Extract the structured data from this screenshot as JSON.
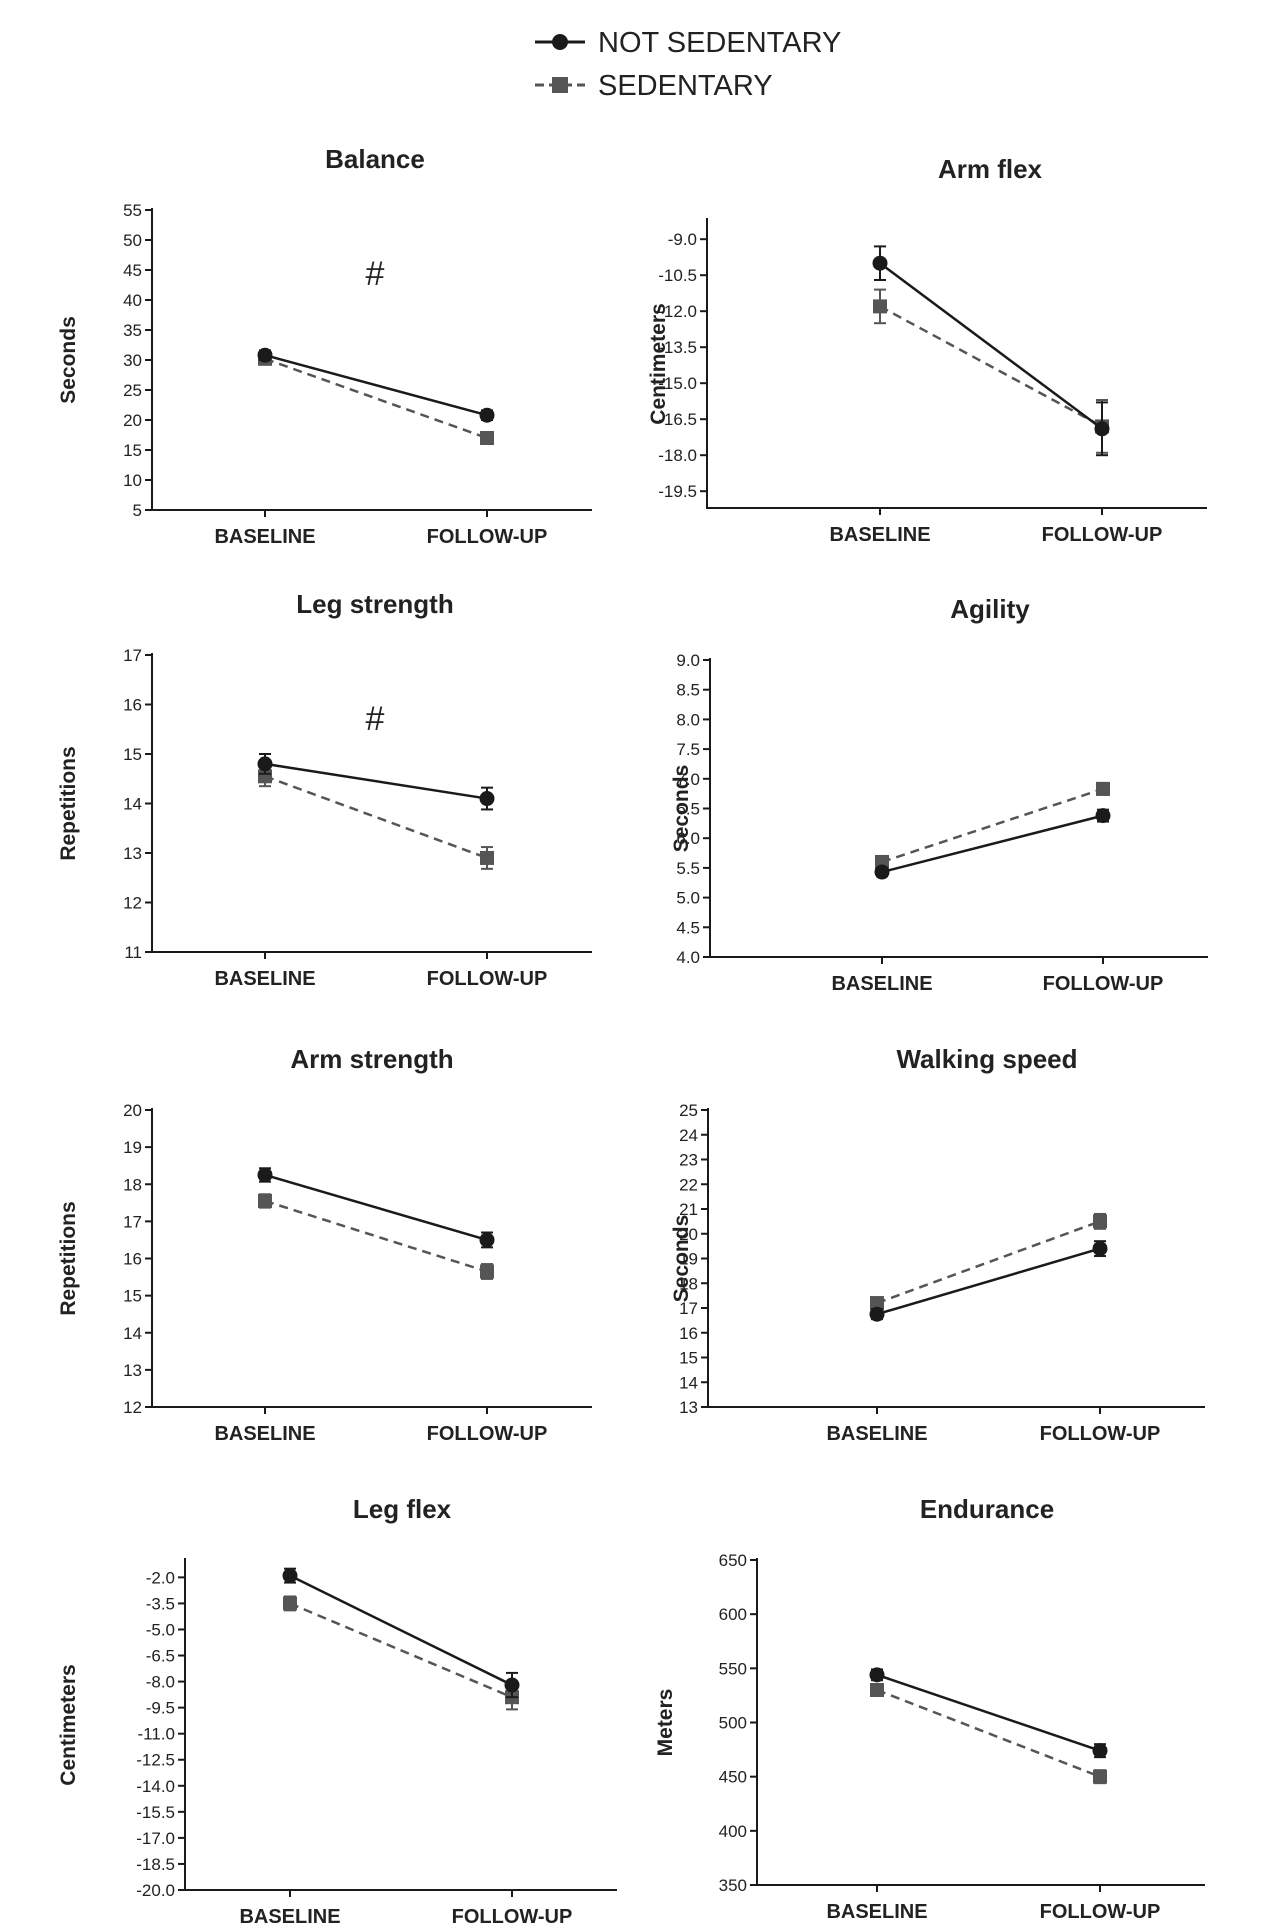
{
  "legend": {
    "entries": [
      {
        "name": "NOT SEDENTARY",
        "marker": "circle",
        "line": "solid"
      },
      {
        "name": "SEDENTARY",
        "marker": "square",
        "line": "dashed"
      }
    ]
  },
  "colors": {
    "ink": "#1a1a1a",
    "sedentary_marker": "#555555"
  },
  "chart_data": [
    {
      "type": "line",
      "title": "Balance",
      "xlabel": "",
      "ylabel": "Seconds",
      "categories": [
        "BASELINE",
        "FOLLOW-UP"
      ],
      "ylim": [
        5,
        55
      ],
      "yticks": [
        "5",
        "10",
        "15",
        "20",
        "25",
        "30",
        "35",
        "40",
        "45",
        "50",
        "55"
      ],
      "series": [
        {
          "name": "NOT SEDENTARY",
          "values": [
            30.8,
            20.8
          ],
          "err": [
            0.8,
            0.8
          ]
        },
        {
          "name": "SEDENTARY",
          "values": [
            30.2,
            17.0
          ],
          "err": [
            0.8,
            0.8
          ]
        }
      ],
      "annotation": "#"
    },
    {
      "type": "line",
      "title": "Arm flex",
      "xlabel": "",
      "ylabel": "Centimeters",
      "categories": [
        "BASELINE",
        "FOLLOW-UP"
      ],
      "ylim": [
        -20.2,
        -8.2
      ],
      "yticks": [
        "-9.0",
        "-10.5",
        "-12.0",
        "-13.5",
        "-15.0",
        "-16.5",
        "-18.0",
        "-19.5"
      ],
      "series": [
        {
          "name": "NOT SEDENTARY",
          "values": [
            -10.0,
            -16.9
          ],
          "err": [
            0.7,
            1.1
          ]
        },
        {
          "name": "SEDENTARY",
          "values": [
            -11.8,
            -16.8
          ],
          "err": [
            0.7,
            1.1
          ]
        }
      ]
    },
    {
      "type": "line",
      "title": "Leg strength",
      "xlabel": "",
      "ylabel": "Repetitions",
      "categories": [
        "BASELINE",
        "FOLLOW-UP"
      ],
      "ylim": [
        11,
        17
      ],
      "yticks": [
        "11",
        "12",
        "13",
        "14",
        "15",
        "16",
        "17"
      ],
      "series": [
        {
          "name": "NOT SEDENTARY",
          "values": [
            14.8,
            14.1
          ],
          "err": [
            0.2,
            0.22
          ]
        },
        {
          "name": "SEDENTARY",
          "values": [
            14.55,
            12.9
          ],
          "err": [
            0.2,
            0.22
          ]
        }
      ],
      "annotation": "#"
    },
    {
      "type": "line",
      "title": "Agility",
      "xlabel": "",
      "ylabel": "Seconds",
      "categories": [
        "BASELINE",
        "FOLLOW-UP"
      ],
      "ylim": [
        4.0,
        9.0
      ],
      "yticks": [
        "4.0",
        "4.5",
        "5.0",
        "5.5",
        "6.0",
        "6.5",
        "7.0",
        "7.5",
        "8.0",
        "8.5",
        "9.0"
      ],
      "series": [
        {
          "name": "NOT SEDENTARY",
          "values": [
            5.43,
            6.38
          ],
          "err": [
            0.07,
            0.1
          ]
        },
        {
          "name": "SEDENTARY",
          "values": [
            5.6,
            6.83
          ],
          "err": [
            0.07,
            0.1
          ]
        }
      ]
    },
    {
      "type": "line",
      "title": "Arm strength",
      "xlabel": "",
      "ylabel": "Repetitions",
      "categories": [
        "BASELINE",
        "FOLLOW-UP"
      ],
      "ylim": [
        12,
        20
      ],
      "yticks": [
        "12",
        "13",
        "14",
        "15",
        "16",
        "17",
        "18",
        "19",
        "20"
      ],
      "series": [
        {
          "name": "NOT SEDENTARY",
          "values": [
            18.25,
            16.5
          ],
          "err": [
            0.18,
            0.2
          ]
        },
        {
          "name": "SEDENTARY",
          "values": [
            17.55,
            15.65
          ],
          "err": [
            0.18,
            0.2
          ]
        }
      ]
    },
    {
      "type": "line",
      "title": "Walking speed",
      "xlabel": "",
      "ylabel": "Seconds",
      "categories": [
        "BASELINE",
        "FOLLOW-UP"
      ],
      "ylim": [
        13,
        25
      ],
      "yticks": [
        "13",
        "14",
        "15",
        "16",
        "17",
        "18",
        "19",
        "20",
        "21",
        "22",
        "23",
        "24",
        "25"
      ],
      "series": [
        {
          "name": "NOT SEDENTARY",
          "values": [
            16.75,
            19.4
          ],
          "err": [
            0.2,
            0.3
          ]
        },
        {
          "name": "SEDENTARY",
          "values": [
            17.2,
            20.5
          ],
          "err": [
            0.2,
            0.3
          ]
        }
      ]
    },
    {
      "type": "line",
      "title": "Leg flex",
      "xlabel": "",
      "ylabel": "Centimeters",
      "categories": [
        "BASELINE",
        "FOLLOW-UP"
      ],
      "ylim": [
        -20.0,
        -1.0
      ],
      "yticks": [
        "-2.0",
        "-3.5",
        "-5.0",
        "-6.5",
        "-8.0",
        "-9.5",
        "-11.0",
        "-12.5",
        "-14.0",
        "-15.5",
        "-17.0",
        "-18.5",
        "-20.0"
      ],
      "series": [
        {
          "name": "NOT SEDENTARY",
          "values": [
            -1.9,
            -8.2
          ],
          "err": [
            0.4,
            0.7
          ]
        },
        {
          "name": "SEDENTARY",
          "values": [
            -3.5,
            -8.9
          ],
          "err": [
            0.4,
            0.7
          ]
        }
      ]
    },
    {
      "type": "line",
      "title": "Endurance",
      "xlabel": "",
      "ylabel": "Meters",
      "categories": [
        "BASELINE",
        "FOLLOW-UP"
      ],
      "ylim": [
        350,
        650
      ],
      "yticks": [
        "350",
        "400",
        "450",
        "500",
        "550",
        "600",
        "650"
      ],
      "series": [
        {
          "name": "NOT SEDENTARY",
          "values": [
            544,
            474
          ],
          "err": [
            5,
            6
          ]
        },
        {
          "name": "SEDENTARY",
          "values": [
            530,
            450
          ],
          "err": [
            5,
            6
          ]
        }
      ]
    }
  ]
}
